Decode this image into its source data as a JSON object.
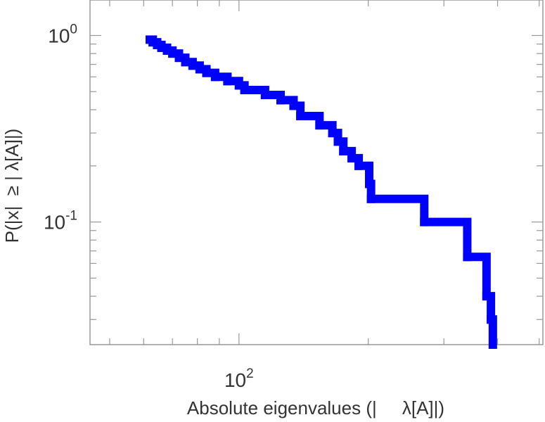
{
  "chart_data": {
    "type": "line",
    "title": "",
    "xlabel": "Absolute eigenvalues (|     λ[A]|)",
    "ylabel": "P(|x|  ≥ | λ[A]|)",
    "xscale": "log",
    "yscale": "log",
    "xlim": [
      45,
      510
    ],
    "ylim": [
      0.022,
      1.55
    ],
    "grid": false,
    "legend": "none",
    "line_color": "#0000ff",
    "x_tick_labels": [
      {
        "value": 100,
        "base": "10",
        "exp": "2"
      }
    ],
    "y_tick_labels": [
      {
        "value": 1,
        "base": "10",
        "exp": "0"
      },
      {
        "value": 0.1,
        "base": "10",
        "exp": "-1"
      }
    ],
    "series": [
      {
        "style": "step",
        "points": [
          [
            62,
            0.95
          ],
          [
            63,
            0.92
          ],
          [
            64.5,
            0.89
          ],
          [
            66,
            0.86
          ],
          [
            68,
            0.83
          ],
          [
            70,
            0.8
          ],
          [
            72.5,
            0.76
          ],
          [
            75,
            0.72
          ],
          [
            78,
            0.69
          ],
          [
            81,
            0.66
          ],
          [
            84,
            0.63
          ],
          [
            88,
            0.6
          ],
          [
            94,
            0.57
          ],
          [
            100,
            0.54
          ],
          [
            103,
            0.51
          ],
          [
            115,
            0.48
          ],
          [
            125,
            0.45
          ],
          [
            134,
            0.42
          ],
          [
            139,
            0.37
          ],
          [
            154,
            0.33
          ],
          [
            165,
            0.3
          ],
          [
            170,
            0.27
          ],
          [
            175,
            0.24
          ],
          [
            183,
            0.22
          ],
          [
            190,
            0.2
          ],
          [
            201,
            0.16
          ],
          [
            203,
            0.133
          ],
          [
            270,
            0.1
          ],
          [
            340,
            0.065
          ],
          [
            377,
            0.04
          ],
          [
            386,
            0.03
          ],
          [
            390,
            0.022
          ]
        ]
      }
    ]
  }
}
